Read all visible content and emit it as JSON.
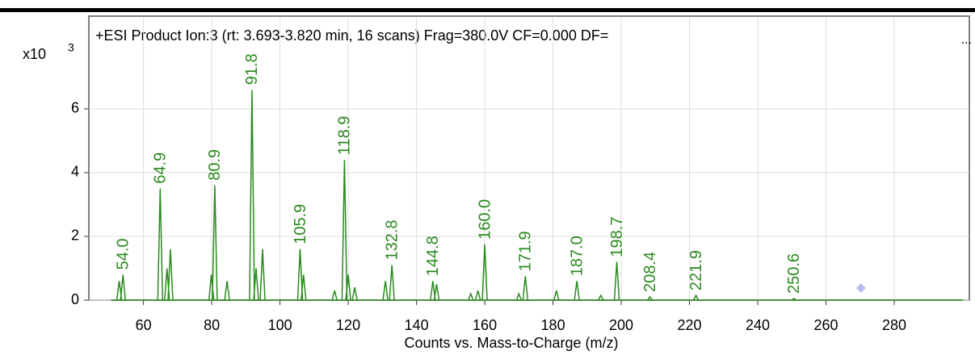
{
  "chart_data": {
    "type": "spectrum",
    "title": "+ESI Product Ion:3 (rt: 3.693-3.820 min, 16 scans) Frag=380.0V CF=0.000 DF=",
    "title_more": "...",
    "y_multiplier": "x10",
    "y_exponent": "3",
    "xlabel": "Counts vs. Mass-to-Charge (m/z)",
    "color": "#2a8a1e",
    "x": [
      52.9,
      54.0,
      64.9,
      66.9,
      67.9,
      79.9,
      80.9,
      84.5,
      91.8,
      93.0,
      94.9,
      105.9,
      106.9,
      116.0,
      118.9,
      120.0,
      121.9,
      130.9,
      132.8,
      144.8,
      145.9,
      155.9,
      158.0,
      160.0,
      170.0,
      171.9,
      181.0,
      187.0,
      194.0,
      198.7,
      208.4,
      221.9,
      250.6
    ],
    "values": [
      0.6,
      0.8,
      3.5,
      1.0,
      1.6,
      0.8,
      3.6,
      0.6,
      6.6,
      1.0,
      1.6,
      1.6,
      0.8,
      0.3,
      4.4,
      0.8,
      0.4,
      0.6,
      1.1,
      0.6,
      0.5,
      0.2,
      0.3,
      1.75,
      0.2,
      0.75,
      0.3,
      0.6,
      0.15,
      1.2,
      0.1,
      0.15,
      0.05
    ],
    "peak_labels": [
      null,
      "54.0",
      "64.9",
      null,
      null,
      null,
      "80.9",
      null,
      "91.8",
      null,
      null,
      "105.9",
      null,
      null,
      "118.9",
      null,
      null,
      null,
      "132.8",
      "144.8",
      null,
      null,
      null,
      "160.0",
      null,
      "171.9",
      null,
      "187.0",
      null,
      "198.7",
      "208.4",
      "221.9",
      "250.6"
    ],
    "xlim": [
      44,
      302
    ],
    "ylim": [
      0,
      8.86
    ],
    "xticks": [
      60,
      80,
      100,
      120,
      140,
      160,
      180,
      200,
      220,
      240,
      260,
      280
    ],
    "yticks": [
      0,
      2,
      4,
      6
    ],
    "grid": true
  }
}
